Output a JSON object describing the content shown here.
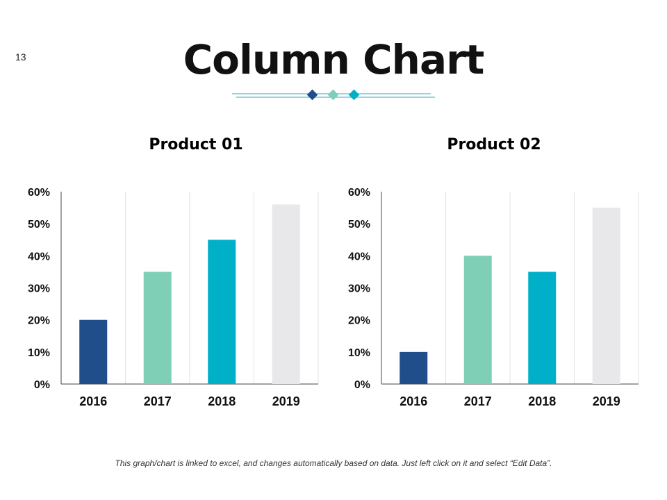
{
  "slide": {
    "number": "13",
    "title": "Column Chart",
    "footer": "This graph/chart is linked to excel, and changes automatically based on data. Just left click on it and select “Edit Data”."
  },
  "colors": {
    "c2016": "#1f4e8a",
    "c2017": "#7ecfb6",
    "c2018": "#00b0c8",
    "c2019": "#e8e8ea",
    "divider_line": "#2fa9c0"
  },
  "chart_data": [
    {
      "type": "bar",
      "title": "Product 01",
      "categories": [
        "2016",
        "2017",
        "2018",
        "2019"
      ],
      "values": [
        20,
        35,
        45,
        56
      ],
      "ylim": [
        0,
        60
      ],
      "yticks": [
        "0%",
        "10%",
        "20%",
        "30%",
        "40%",
        "50%",
        "60%"
      ],
      "xlabel": "",
      "ylabel": ""
    },
    {
      "type": "bar",
      "title": "Product 02",
      "categories": [
        "2016",
        "2017",
        "2018",
        "2019"
      ],
      "values": [
        10,
        40,
        35,
        55
      ],
      "ylim": [
        0,
        60
      ],
      "yticks": [
        "0%",
        "10%",
        "20%",
        "30%",
        "40%",
        "50%",
        "60%"
      ],
      "xlabel": "",
      "ylabel": ""
    }
  ]
}
